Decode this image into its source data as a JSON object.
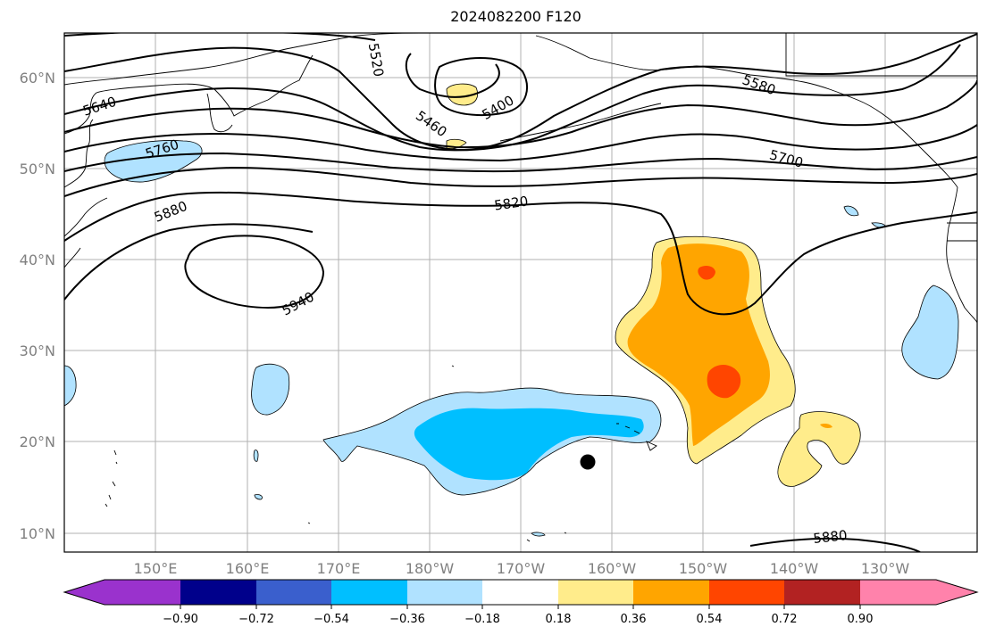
{
  "title": "2024082200 F120",
  "map": {
    "lat_labels": [
      "60°N",
      "50°N",
      "40°N",
      "30°N",
      "20°N",
      "10°N"
    ],
    "lon_labels": [
      "150°E",
      "160°E",
      "170°E",
      "180°W",
      "170°W",
      "160°W",
      "150°W",
      "140°W",
      "130°W"
    ],
    "contour_labels": [
      "5520",
      "5400",
      "5460",
      "5580",
      "5640",
      "5760",
      "5700",
      "5820",
      "5880",
      "5940",
      "5880"
    ]
  },
  "colorbar": {
    "tick_labels": [
      "−0.90",
      "−0.72",
      "−0.54",
      "−0.36",
      "−0.18",
      "0.18",
      "0.36",
      "0.54",
      "0.72",
      "0.90"
    ],
    "colors": [
      "#9a32cd",
      "#00008b",
      "#3a5fcd",
      "#00bfff",
      "#b0e2ff",
      "#ffffff",
      "#ffec8b",
      "#ffa500",
      "#ff4500",
      "#b22222",
      "#ff82ab"
    ]
  }
}
